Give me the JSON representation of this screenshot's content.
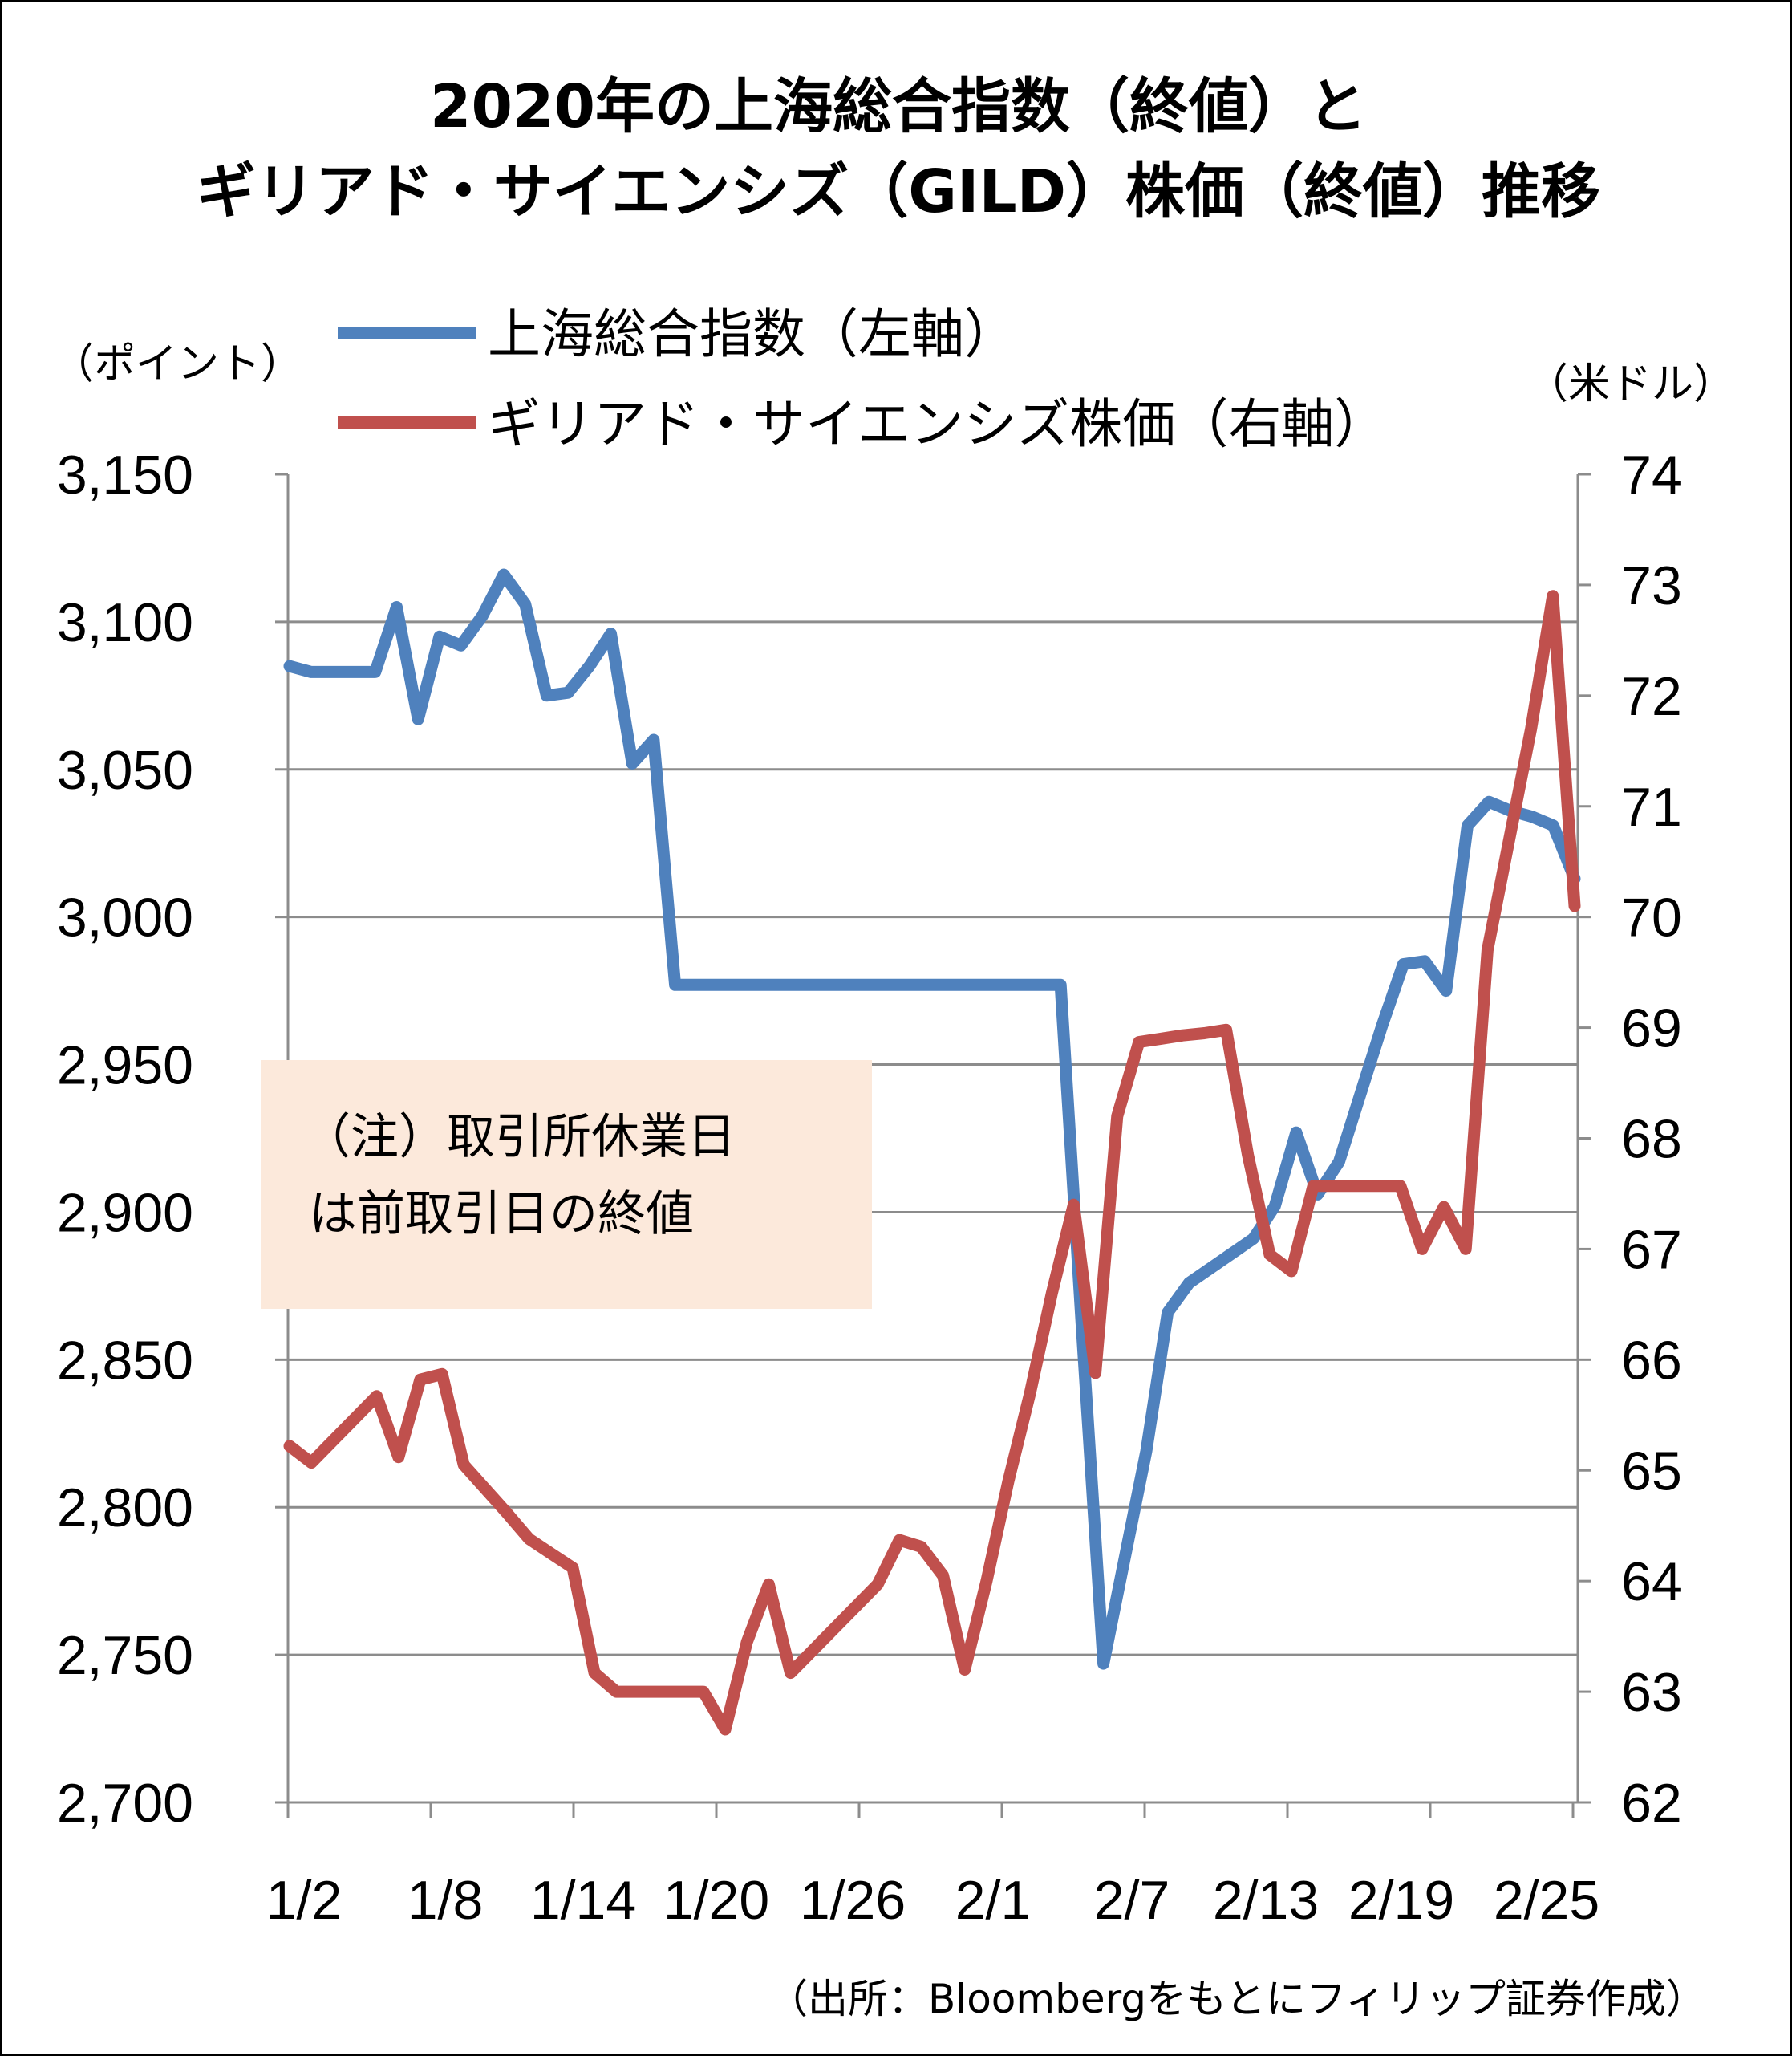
{
  "title": {
    "line1": "2020年の上海総合指数（終値）と",
    "line2": "ギリアド・サイエンシズ（GILD）株価（終値）推移"
  },
  "units": {
    "left": "（ポイント）",
    "right": "（米ドル）"
  },
  "note": {
    "line1": "（注）取引所休業日",
    "line2": "は前取引日の終値"
  },
  "source": "（出所：Bloombergをもとにフィリップ証券作成）",
  "chart_data": {
    "type": "line",
    "x_tick_labels": [
      "1/2",
      "1/8",
      "1/14",
      "1/20",
      "1/26",
      "2/1",
      "2/7",
      "2/13",
      "2/19",
      "2/25"
    ],
    "y_left": {
      "ticks": [
        "3,150",
        "3,100",
        "3,050",
        "3,000",
        "2,950",
        "2,900",
        "2,850",
        "2,800",
        "2,750",
        "2,700"
      ],
      "range": [
        2700,
        3150
      ]
    },
    "y_right": {
      "ticks": [
        "74",
        "73",
        "72",
        "71",
        "70",
        "69",
        "68",
        "67",
        "66",
        "65",
        "64",
        "63",
        "62"
      ],
      "range": [
        62,
        74
      ]
    },
    "gridlines": true,
    "legend_position": "top",
    "series": [
      {
        "name": "上海総合指数（左軸）",
        "axis": "left",
        "color": "#4f81bd",
        "values": [
          3085,
          3083,
          3083,
          3083,
          3083,
          3105,
          3067,
          3095,
          3092,
          3102,
          3116,
          3106,
          3075,
          3076,
          3085,
          3096,
          3052,
          3060,
          2977,
          2977,
          2977,
          2977,
          2977,
          2977,
          2977,
          2977,
          2977,
          2977,
          2977,
          2977,
          2977,
          2977,
          2977,
          2977,
          2977,
          2977,
          2977,
          2860,
          2747,
          2783,
          2819,
          2866,
          2876,
          2881,
          2886,
          2891,
          2902,
          2927,
          2906,
          2917,
          2940,
          2963,
          2984,
          2985,
          2975,
          3031,
          3039,
          3036,
          3034,
          3031,
          3013
        ]
      },
      {
        "name": "ギリアド・サイエンシズ株価（右軸）",
        "axis": "right",
        "color": "#c0504d",
        "values": [
          65.22,
          65.07,
          65.27,
          65.47,
          65.67,
          65.12,
          65.82,
          65.87,
          65.05,
          64.83,
          64.61,
          64.38,
          64.25,
          64.12,
          63.17,
          63.0,
          63.0,
          63.0,
          63.0,
          63.0,
          62.66,
          63.45,
          63.97,
          63.17,
          63.37,
          63.57,
          63.77,
          63.97,
          64.37,
          64.31,
          64.05,
          63.2,
          64.0,
          64.9,
          65.7,
          66.6,
          67.4,
          65.88,
          68.2,
          68.87,
          68.9,
          68.93,
          68.95,
          68.98,
          67.85,
          66.95,
          66.8,
          67.57,
          67.57,
          67.57,
          67.57,
          67.57,
          67.0,
          67.38,
          67.0,
          69.7,
          70.7,
          71.7,
          72.9,
          70.1
        ]
      }
    ]
  }
}
